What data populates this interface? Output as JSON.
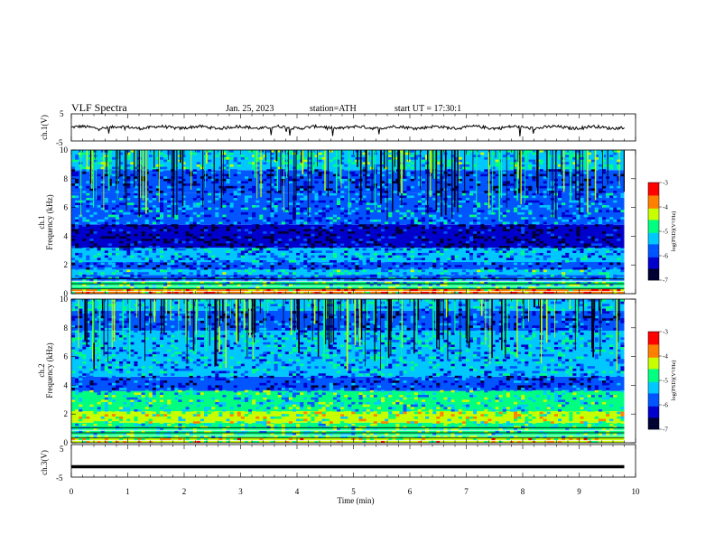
{
  "header": {
    "title": "VLF Spectra",
    "date": "Jan. 25, 2023",
    "station": "station=ATH",
    "start": "start UT =  17:30:1"
  },
  "chart_data": [
    {
      "type": "line",
      "panel": "ch1-waveform",
      "ylabel": "ch.1(V)",
      "ylim": [
        -5,
        5
      ],
      "yticks": [
        "5",
        "-5"
      ],
      "xlim": [
        0,
        10
      ],
      "series": [
        {
          "values_description_level": 0.0,
          "x_end": 9.8
        }
      ],
      "color": "#000000"
    },
    {
      "type": "heatmap",
      "panel": "ch1-spectrogram",
      "ylabel": "ch.1 Frequency (kHz)",
      "ylim": [
        0,
        10
      ],
      "yticks": [
        "0",
        "2",
        "4",
        "6",
        "8",
        "10"
      ],
      "xlim": [
        0,
        9.8
      ],
      "colorbar": {
        "label": "log(PSD)(V²/Hz)",
        "range": [
          -7,
          -3
        ],
        "ticks": [
          "-3",
          "-4",
          "-5",
          "-6",
          "-7"
        ]
      },
      "bands_khz": [
        {
          "from": 0.0,
          "to": 0.3,
          "level": -3.8
        },
        {
          "from": 0.3,
          "to": 0.9,
          "level": -4.9
        },
        {
          "from": 0.9,
          "to": 1.3,
          "level": -5.6
        },
        {
          "from": 1.3,
          "to": 1.7,
          "level": -5.2
        },
        {
          "from": 1.7,
          "to": 2.2,
          "level": -5.9
        },
        {
          "from": 2.2,
          "to": 3.2,
          "level": -5.5
        },
        {
          "from": 3.2,
          "to": 4.8,
          "level": -6.5
        },
        {
          "from": 4.8,
          "to": 7.0,
          "level": -5.6
        },
        {
          "from": 7.0,
          "to": 8.6,
          "level": -6.0
        },
        {
          "from": 8.6,
          "to": 10.0,
          "level": -5.1
        }
      ]
    },
    {
      "type": "heatmap",
      "panel": "ch2-spectrogram",
      "ylabel": "ch.2 Frequency (kHz)",
      "ylim": [
        0,
        10
      ],
      "yticks": [
        "0",
        "2",
        "4",
        "6",
        "8",
        "10"
      ],
      "xlim": [
        0,
        9.8
      ],
      "colorbar": {
        "label": "log(PSD)(V²/Hz)",
        "range": [
          -7,
          -3
        ],
        "ticks": [
          "-3",
          "-4",
          "-5",
          "-6",
          "-7"
        ]
      },
      "bands_khz": [
        {
          "from": 0.0,
          "to": 0.4,
          "level": -4.2
        },
        {
          "from": 0.4,
          "to": 1.4,
          "level": -4.8
        },
        {
          "from": 1.4,
          "to": 2.2,
          "level": -4.4
        },
        {
          "from": 2.2,
          "to": 3.6,
          "level": -5.0
        },
        {
          "from": 3.6,
          "to": 4.6,
          "level": -6.0
        },
        {
          "from": 4.6,
          "to": 7.8,
          "level": -5.4
        },
        {
          "from": 7.8,
          "to": 9.2,
          "level": -5.9
        },
        {
          "from": 9.2,
          "to": 10.0,
          "level": -5.3
        }
      ]
    },
    {
      "type": "line",
      "panel": "ch3-waveform",
      "ylabel": "ch.3(V)",
      "ylim": [
        -5,
        5
      ],
      "yticks": [
        "5",
        "-5"
      ],
      "xlim": [
        0,
        10
      ],
      "xlabel": "Time (min)",
      "xticks": [
        "0",
        "1",
        "2",
        "3",
        "4",
        "5",
        "6",
        "7",
        "8",
        "9",
        "10"
      ],
      "series": [
        {
          "constant_level": -1.8,
          "x_end": 9.8
        }
      ],
      "color": "#000000"
    }
  ],
  "colors": {
    "colormap": [
      "#000033",
      "#0000cc",
      "#0055ff",
      "#00c8ff",
      "#00ff80",
      "#c8ff00",
      "#ff8000",
      "#ff0000",
      "#ffffff"
    ]
  }
}
